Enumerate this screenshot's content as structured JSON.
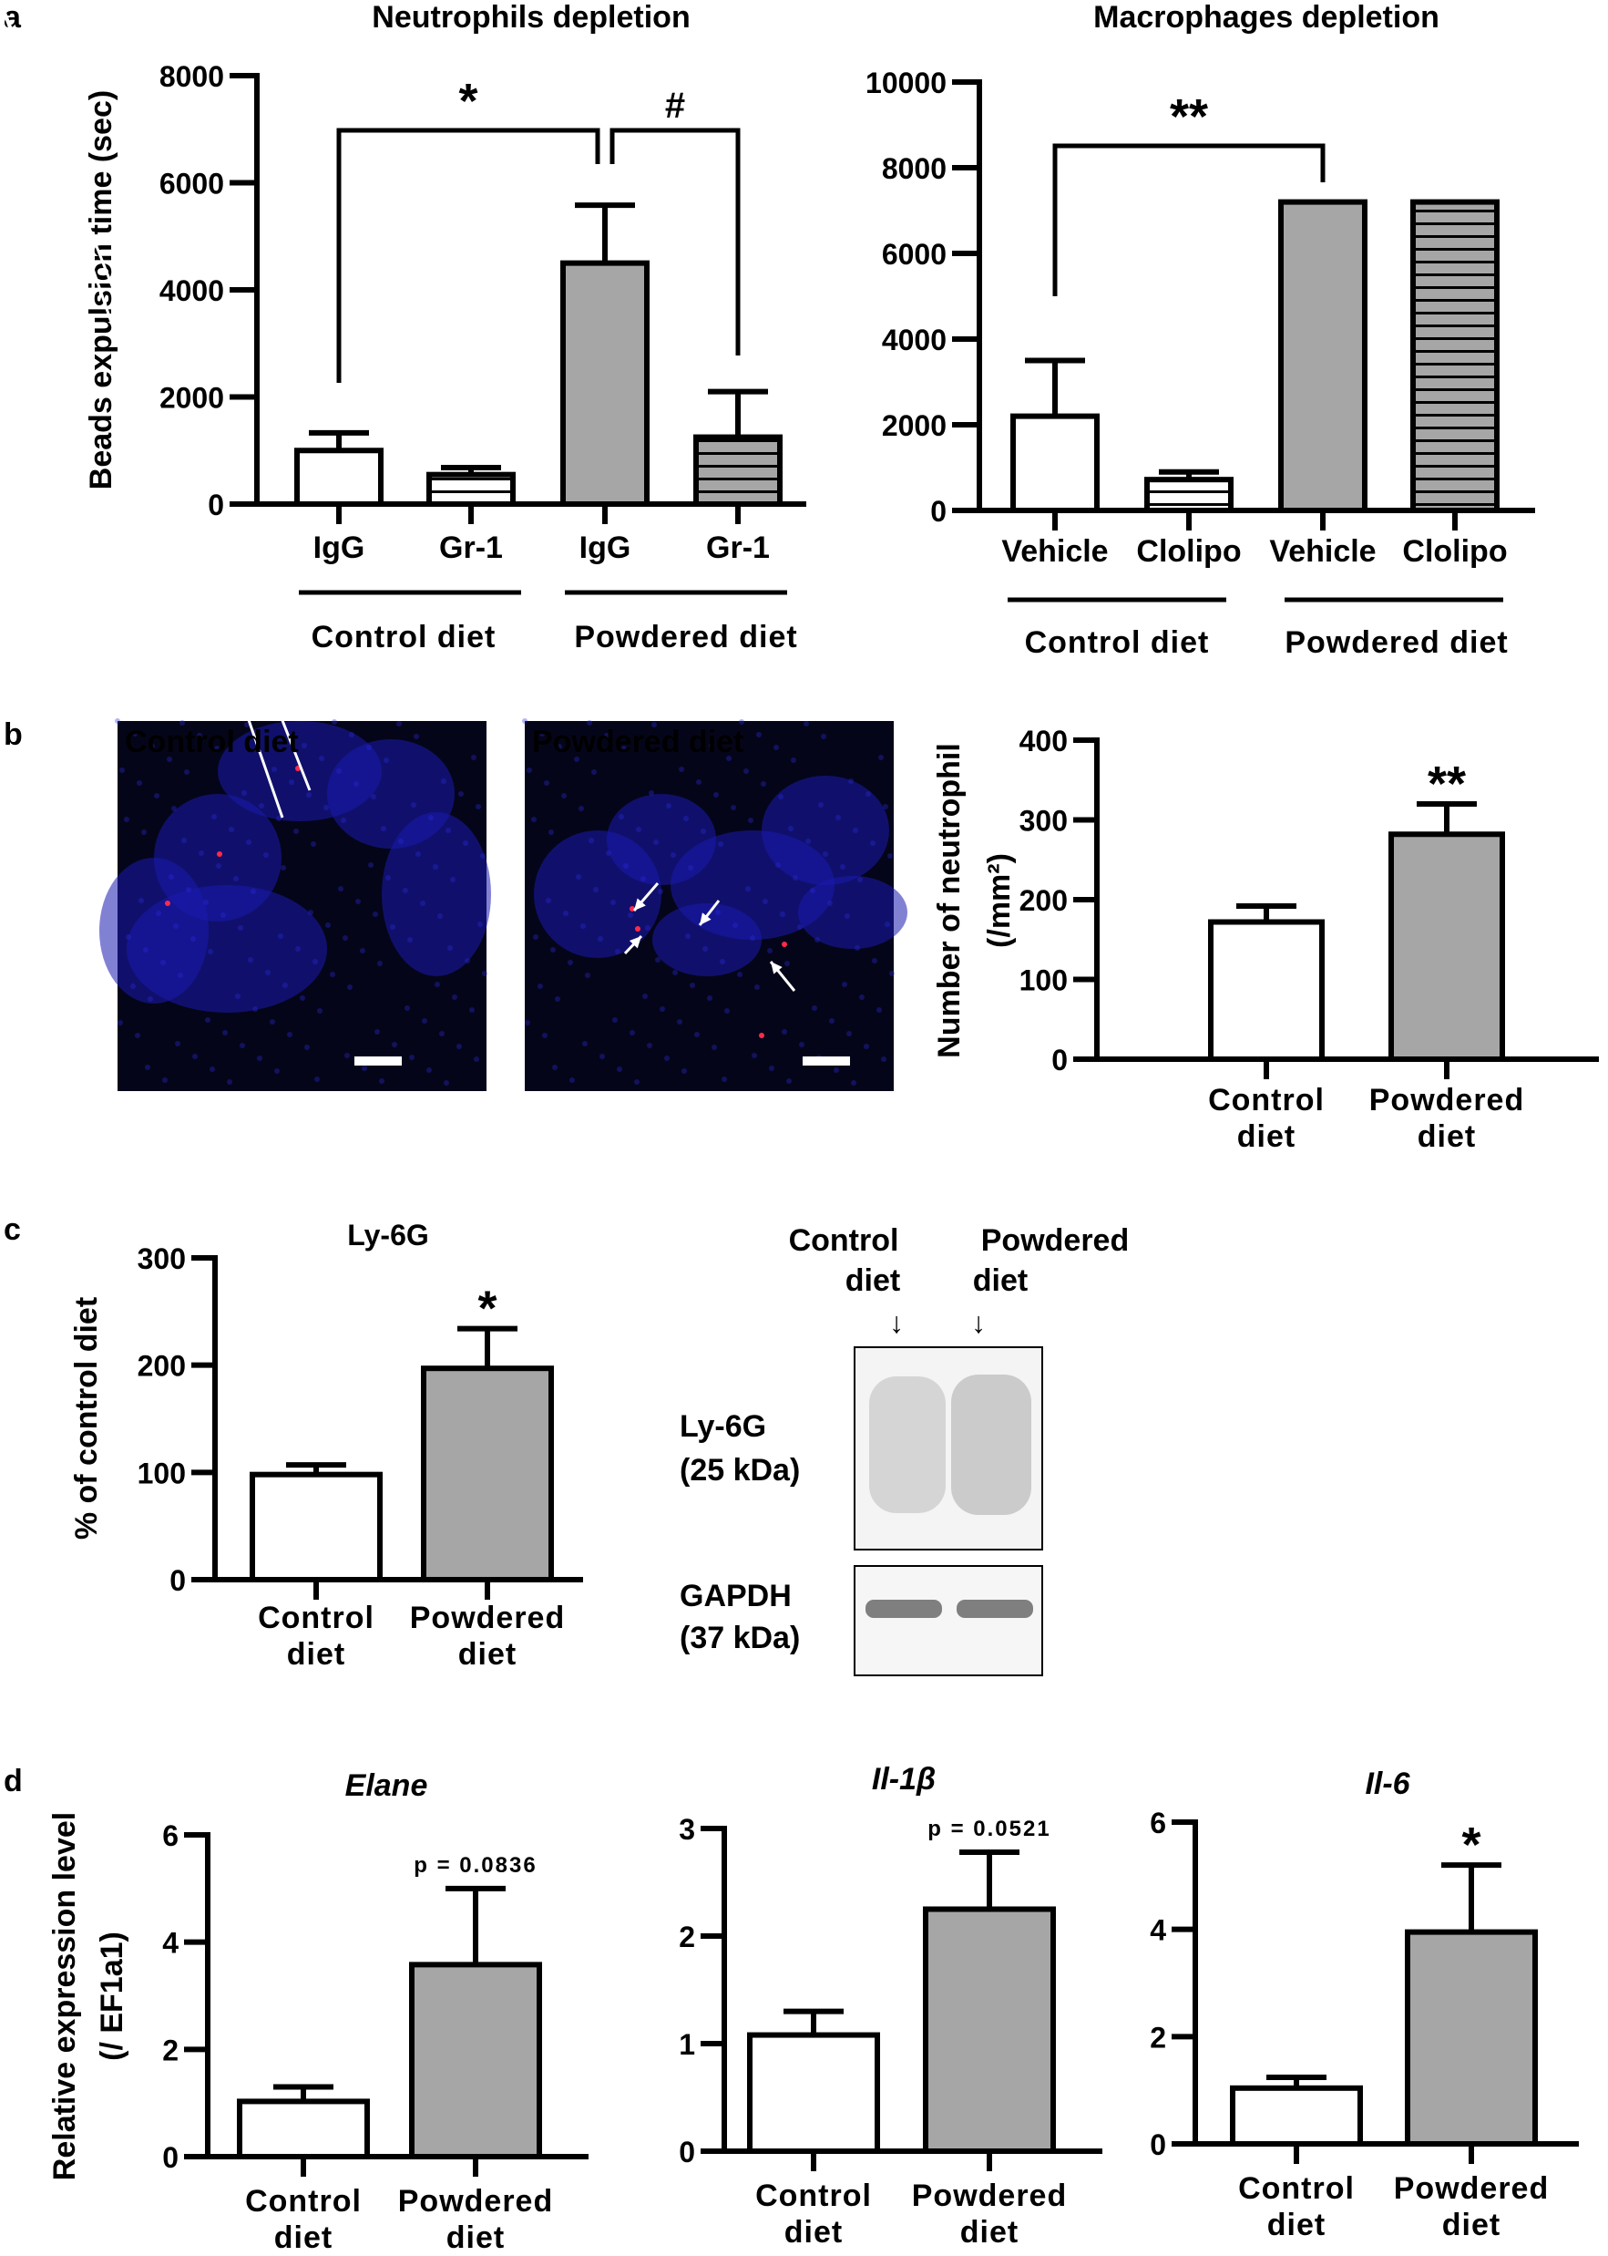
{
  "panel_labels": {
    "a": "a",
    "b": "b",
    "c": "c",
    "d": "d"
  },
  "colors": {
    "control_fill": "#ffffff",
    "powdered_fill": "#a6a6a7",
    "stroke": "#000000",
    "micro_bg": "#05051a",
    "nuclei": "#1a1ab0",
    "neutrophil_spots": "#ff2a4a"
  },
  "chart_data": [
    {
      "id": "a1",
      "type": "bar",
      "title": "Neutrophils depletion",
      "ylabel": "Beads expulsion time (sec)",
      "ylim": [
        0,
        8000
      ],
      "yticks": [
        0,
        2000,
        4000,
        6000,
        8000
      ],
      "categories": [
        "IgG",
        "Gr-1",
        "IgG",
        "Gr-1"
      ],
      "groups": [
        {
          "label": "Control diet",
          "categories": [
            0,
            1
          ]
        },
        {
          "label": "Powdered diet",
          "categories": [
            2,
            3
          ]
        }
      ],
      "values": [
        1000,
        550,
        4500,
        1250
      ],
      "errors": [
        330,
        130,
        1080,
        850
      ],
      "fills": [
        "white",
        "white-stripe",
        "gray",
        "gray-stripe"
      ],
      "comparisons": [
        {
          "from": 0,
          "to": 2,
          "label": "*"
        },
        {
          "from": 2,
          "to": 3,
          "label": "#"
        }
      ]
    },
    {
      "id": "a2",
      "type": "bar",
      "title": "Macrophages depletion",
      "ylabel": "",
      "ylim": [
        0,
        10000
      ],
      "yticks": [
        0,
        2000,
        4000,
        6000,
        8000,
        10000
      ],
      "categories": [
        "Vehicle",
        "Clolipo",
        "Vehicle",
        "Clolipo"
      ],
      "groups": [
        {
          "label": "Control diet",
          "categories": [
            0,
            1
          ]
        },
        {
          "label": "Powdered diet",
          "categories": [
            2,
            3
          ]
        }
      ],
      "values": [
        2200,
        720,
        7200,
        7200
      ],
      "errors": [
        1300,
        180,
        0,
        0
      ],
      "fills": [
        "white",
        "white-stripe",
        "gray",
        "gray-stripe"
      ],
      "comparisons": [
        {
          "from": 0,
          "to": 2,
          "label": "**"
        }
      ]
    },
    {
      "id": "b",
      "type": "bar",
      "title": "",
      "ylabel": "Number of neutrophil",
      "ylabel_unit": "(/mm²)",
      "ylim": [
        0,
        400
      ],
      "yticks": [
        0,
        100,
        200,
        300,
        400
      ],
      "categories": [
        "Control diet",
        "Powdered diet"
      ],
      "values": [
        172,
        282
      ],
      "errors": [
        20,
        38
      ],
      "fills": [
        "white",
        "gray"
      ],
      "significance": [
        "",
        "**"
      ]
    },
    {
      "id": "c",
      "type": "bar",
      "title": "Ly-6G",
      "ylabel": "% of control diet",
      "ylim": [
        0,
        300
      ],
      "yticks": [
        0,
        100,
        200,
        300
      ],
      "categories": [
        "Control diet",
        "Powdered diet"
      ],
      "values": [
        98,
        197
      ],
      "errors": [
        9,
        37
      ],
      "fills": [
        "white",
        "gray"
      ],
      "significance": [
        "",
        "*"
      ]
    },
    {
      "id": "d1",
      "type": "bar",
      "title": "Elane",
      "ylabel": "Relative expression level",
      "ylabel_unit": "(/ EF1a1)",
      "ylim": [
        0,
        6
      ],
      "yticks": [
        0,
        2,
        4,
        6
      ],
      "categories": [
        "Control diet",
        "Powdered diet"
      ],
      "values": [
        1.03,
        3.58
      ],
      "errors": [
        0.27,
        1.42
      ],
      "fills": [
        "white",
        "gray"
      ],
      "significance": [
        "",
        "p = 0.0836"
      ]
    },
    {
      "id": "d2",
      "type": "bar",
      "title": "Il-1β",
      "ylabel": "",
      "ylim": [
        0,
        3
      ],
      "yticks": [
        0,
        1,
        2,
        3
      ],
      "categories": [
        "Control diet",
        "Powdered diet"
      ],
      "values": [
        1.08,
        2.25
      ],
      "errors": [
        0.22,
        0.53
      ],
      "fills": [
        "white",
        "gray"
      ],
      "significance": [
        "",
        "p = 0.0521"
      ]
    },
    {
      "id": "d3",
      "type": "bar",
      "title": "Il-6",
      "ylabel": "",
      "ylim": [
        0,
        6
      ],
      "yticks": [
        0,
        2,
        4,
        6
      ],
      "categories": [
        "Control diet",
        "Powdered diet"
      ],
      "values": [
        1.04,
        3.95
      ],
      "errors": [
        0.2,
        1.25
      ],
      "fills": [
        "white",
        "gray"
      ],
      "significance": [
        "",
        "*"
      ]
    }
  ],
  "micrographs": [
    {
      "id": "control",
      "label": "Control diet"
    },
    {
      "id": "powdered",
      "label": "Powdered diet"
    }
  ],
  "western_blot": {
    "lane_labels": [
      "Control diet",
      "Powdered diet"
    ],
    "bands": [
      {
        "name": "Ly-6G",
        "size": "(25 kDa)"
      },
      {
        "name": "GAPDH",
        "size": "(37 kDa)"
      }
    ]
  }
}
